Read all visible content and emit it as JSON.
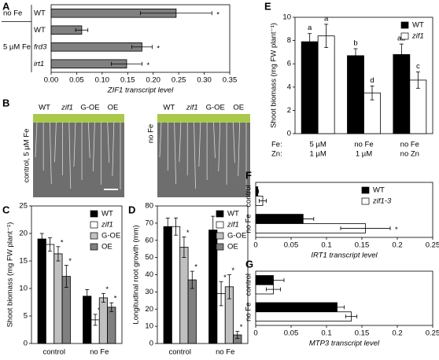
{
  "chart_data": [
    {
      "panel": "A",
      "type": "hbar",
      "categories": [
        "WT",
        "WT",
        "frd3",
        "irt1"
      ],
      "group_labels": [
        "no Fe",
        "5 µM Fe"
      ],
      "values": [
        0.245,
        0.06,
        0.178,
        0.148
      ],
      "errors": [
        0.07,
        0.012,
        0.02,
        0.03
      ],
      "sig": [
        "*",
        null,
        "*",
        "*"
      ],
      "color": "#808080",
      "xlim": [
        0,
        0.35
      ],
      "xticks": [
        {
          "value": 0,
          "label": "0.00"
        },
        {
          "value": 0.05,
          "label": "0.05"
        },
        {
          "value": 0.1,
          "label": "0.10"
        },
        {
          "value": 0.15,
          "label": "0.15"
        },
        {
          "value": 0.2,
          "label": "0.20"
        },
        {
          "value": 0.25,
          "label": "0.25"
        },
        {
          "value": 0.3,
          "label": "0.30"
        },
        {
          "value": 0.35,
          "label": "0.35"
        }
      ],
      "xlabel": "ZIF1 transcript level"
    },
    {
      "panel": "B",
      "type": "photo",
      "columns": [
        "WT",
        "zif1",
        "G-OE",
        "OE"
      ],
      "conditions": [
        "control, 5 µM Fe",
        "no Fe"
      ]
    },
    {
      "panel": "C",
      "type": "grouped_bar",
      "categories": [
        "control",
        "no Fe"
      ],
      "ylim": [
        0,
        25
      ],
      "yticks": [
        0,
        5,
        10,
        15,
        20,
        25
      ],
      "ylabel": "Shoot biomass (mg FW plant⁻¹)",
      "legend": "upper right",
      "series": [
        {
          "name": "WT",
          "color": "#000000",
          "values": [
            19,
            8.6
          ],
          "errors": [
            1,
            1.2
          ],
          "sig": [
            null,
            null
          ]
        },
        {
          "name": "zif1",
          "color": "#ffffff",
          "values": [
            18,
            4.3
          ],
          "errors": [
            1.2,
            1
          ],
          "sig": [
            null,
            "*"
          ]
        },
        {
          "name": "G-OE",
          "color": "#c0c0c0",
          "values": [
            16.3,
            8.3
          ],
          "errors": [
            1.3,
            0.8
          ],
          "sig": [
            "*",
            "*"
          ]
        },
        {
          "name": "OE",
          "color": "#808080",
          "values": [
            12.2,
            6.6
          ],
          "errors": [
            2,
            0.8
          ],
          "sig": [
            "*",
            "*"
          ]
        }
      ]
    },
    {
      "panel": "D",
      "type": "grouped_bar",
      "categories": [
        "control",
        "no Fe"
      ],
      "ylim": [
        0,
        80
      ],
      "yticks": [
        0,
        10,
        20,
        30,
        40,
        50,
        60,
        70,
        80
      ],
      "ylabel": "Longitudinal root growth (mm)",
      "legend": "upper right",
      "series": [
        {
          "name": "WT",
          "color": "#000000",
          "values": [
            68,
            66
          ],
          "errors": [
            5,
            8
          ],
          "sig": [
            null,
            null
          ]
        },
        {
          "name": "zif1",
          "color": "#ffffff",
          "values": [
            68,
            29
          ],
          "errors": [
            5,
            7
          ],
          "sig": [
            null,
            "*"
          ]
        },
        {
          "name": "G-OE",
          "color": "#c0c0c0",
          "values": [
            56,
            33
          ],
          "errors": [
            6,
            7
          ],
          "sig": [
            "*",
            "*"
          ]
        },
        {
          "name": "OE",
          "color": "#808080",
          "values": [
            37,
            5
          ],
          "errors": [
            5,
            2
          ],
          "sig": [
            "*",
            "*"
          ]
        }
      ]
    },
    {
      "panel": "E",
      "type": "grouped_bar",
      "ylim": [
        0,
        10
      ],
      "yticks": [
        0,
        2,
        4,
        6,
        8,
        10
      ],
      "ylabel": "Shoot biomass (mg FW plant⁻¹)",
      "legend": "upper right",
      "condition_rows": [
        {
          "label": "Fe:",
          "values": [
            "5 µM",
            "no Fe",
            "no Fe"
          ]
        },
        {
          "label": "Zn:",
          "values": [
            "1 µM",
            "1 µM",
            "no Zn"
          ]
        }
      ],
      "series": [
        {
          "name": "WT",
          "color": "#000000",
          "values": [
            7.9,
            6.7,
            6.8
          ],
          "errors": [
            0.7,
            0.6,
            0.9
          ],
          "letters": [
            "a",
            "b",
            "ab"
          ]
        },
        {
          "name": "zif1",
          "color": "#ffffff",
          "values": [
            8.4,
            3.5,
            4.6
          ],
          "errors": [
            1,
            0.6,
            0.7
          ],
          "letters": [
            "a",
            "d",
            "c"
          ]
        }
      ]
    },
    {
      "panel": "F",
      "type": "grouped_hbar",
      "categories": [
        "control",
        "no Fe"
      ],
      "xlim": [
        0,
        0.25
      ],
      "xticks": [
        0,
        0.05,
        0.1,
        0.15,
        0.2,
        0.25
      ],
      "xlabel": "IRT1 transcript level",
      "legend": "upper right",
      "series": [
        {
          "name": "WT",
          "color": "#000000",
          "values": [
            0.003,
            0.067
          ],
          "errors": [
            0.001,
            0.015
          ]
        },
        {
          "name": "zif1-3",
          "color": "#ffffff",
          "values": [
            0.01,
            0.155
          ],
          "errors": [
            0.005,
            0.035
          ],
          "sig": [
            null,
            "*"
          ]
        }
      ]
    },
    {
      "panel": "G",
      "type": "grouped_hbar",
      "categories": [
        "control",
        "no Fe"
      ],
      "xlim": [
        0,
        0.25
      ],
      "xticks": [
        0,
        0.05,
        0.1,
        0.15,
        0.2,
        0.25
      ],
      "xlabel": "MTP3 transcript level",
      "series": [
        {
          "color": "#000000",
          "values": [
            0.025,
            0.115
          ],
          "errors": [
            0.015,
            0.01
          ]
        },
        {
          "color": "#ffffff",
          "values": [
            0.025,
            0.135
          ],
          "errors": [
            0.01,
            0.008
          ]
        }
      ]
    }
  ]
}
